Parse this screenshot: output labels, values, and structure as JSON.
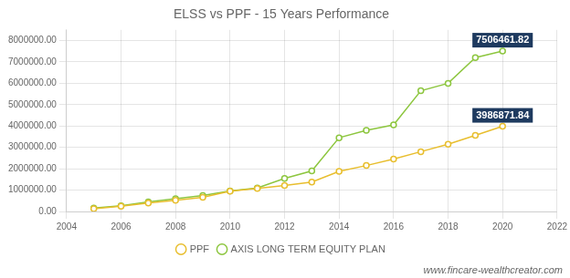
{
  "chart_data": {
    "type": "line",
    "title": "ELSS vs PPF - 15 Years Performance",
    "x": [
      2005,
      2006,
      2007,
      2008,
      2009,
      2010,
      2011,
      2012,
      2013,
      2014,
      2015,
      2016,
      2017,
      2018,
      2019,
      2020
    ],
    "series": [
      {
        "name": "PPF",
        "color": "#e8be2e",
        "marker": "circle",
        "values": [
          130000,
          250000,
          390000,
          520000,
          660000,
          950000,
          1080000,
          1220000,
          1380000,
          1880000,
          2150000,
          2450000,
          2800000,
          3150000,
          3560000,
          3986871.84
        ]
      },
      {
        "name": "AXIS LONG TERM EQUITY PLAN",
        "color": "#8dc63f",
        "marker": "circle",
        "values": [
          155000,
          265000,
          445000,
          600000,
          750000,
          960000,
          1100000,
          1550000,
          1900000,
          3450000,
          3800000,
          4050000,
          5650000,
          6000000,
          7200000,
          7506461.82
        ]
      }
    ],
    "xlim": [
      2004,
      2022
    ],
    "xticks": [
      2004,
      2006,
      2008,
      2010,
      2012,
      2014,
      2016,
      2018,
      2020,
      2022
    ],
    "ylim": [
      0,
      8500000
    ],
    "yticks": [
      {
        "value": 0,
        "label": "0.00"
      },
      {
        "value": 1000000,
        "label": "1000000.00"
      },
      {
        "value": 2000000,
        "label": "2000000.00"
      },
      {
        "value": 3000000,
        "label": "3000000.00"
      },
      {
        "value": 4000000,
        "label": "4000000.00"
      },
      {
        "value": 5000000,
        "label": "5000000.00"
      },
      {
        "value": 6000000,
        "label": "6000000.00"
      },
      {
        "value": 7000000,
        "label": "7000000.00"
      },
      {
        "value": 8000000,
        "label": "8000000.00"
      }
    ],
    "annotations": [
      {
        "text": "7506461.82",
        "x": 2020,
        "y": 7506461.82
      },
      {
        "text": "3986871.84",
        "x": 2020,
        "y": 3986871.84
      },
      {
        "text": "www.fincare-wealthcreator.com"
      }
    ],
    "grid": true,
    "legend": "bottom"
  }
}
